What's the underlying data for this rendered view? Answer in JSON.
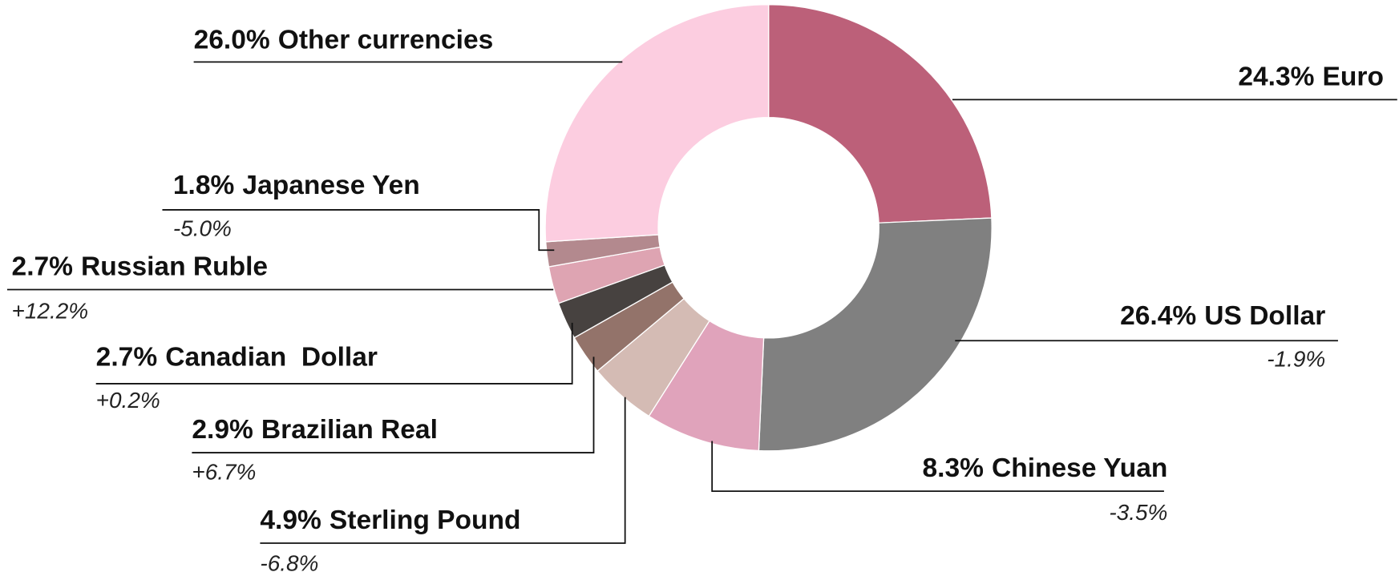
{
  "chart_data": {
    "type": "donut",
    "categories": [
      "Euro",
      "US Dollar",
      "Chinese Yuan",
      "Sterling Pound",
      "Brazilian Real",
      "Canadian  Dollar",
      "Russian Ruble",
      "Japanese Yen",
      "Other currencies"
    ],
    "values": [
      24.3,
      26.4,
      8.3,
      4.9,
      2.9,
      2.7,
      2.7,
      1.8,
      26.0
    ],
    "value_labels": [
      "24.3%",
      "26.4%",
      "8.3%",
      "4.9%",
      "2.9%",
      "2.7%",
      "2.7%",
      "1.8%",
      "26.0%"
    ],
    "changes": [
      null,
      "-1.9%",
      "-3.5%",
      "-6.8%",
      "+6.7%",
      "+0.2%",
      "+12.2%",
      "-5.0%",
      null
    ],
    "colors": [
      "#bc6079",
      "#808080",
      "#e0a3bb",
      "#d4bbb4",
      "#93736a",
      "#474240",
      "#dea4b2",
      "#b3898e",
      "#fccde0"
    ]
  }
}
